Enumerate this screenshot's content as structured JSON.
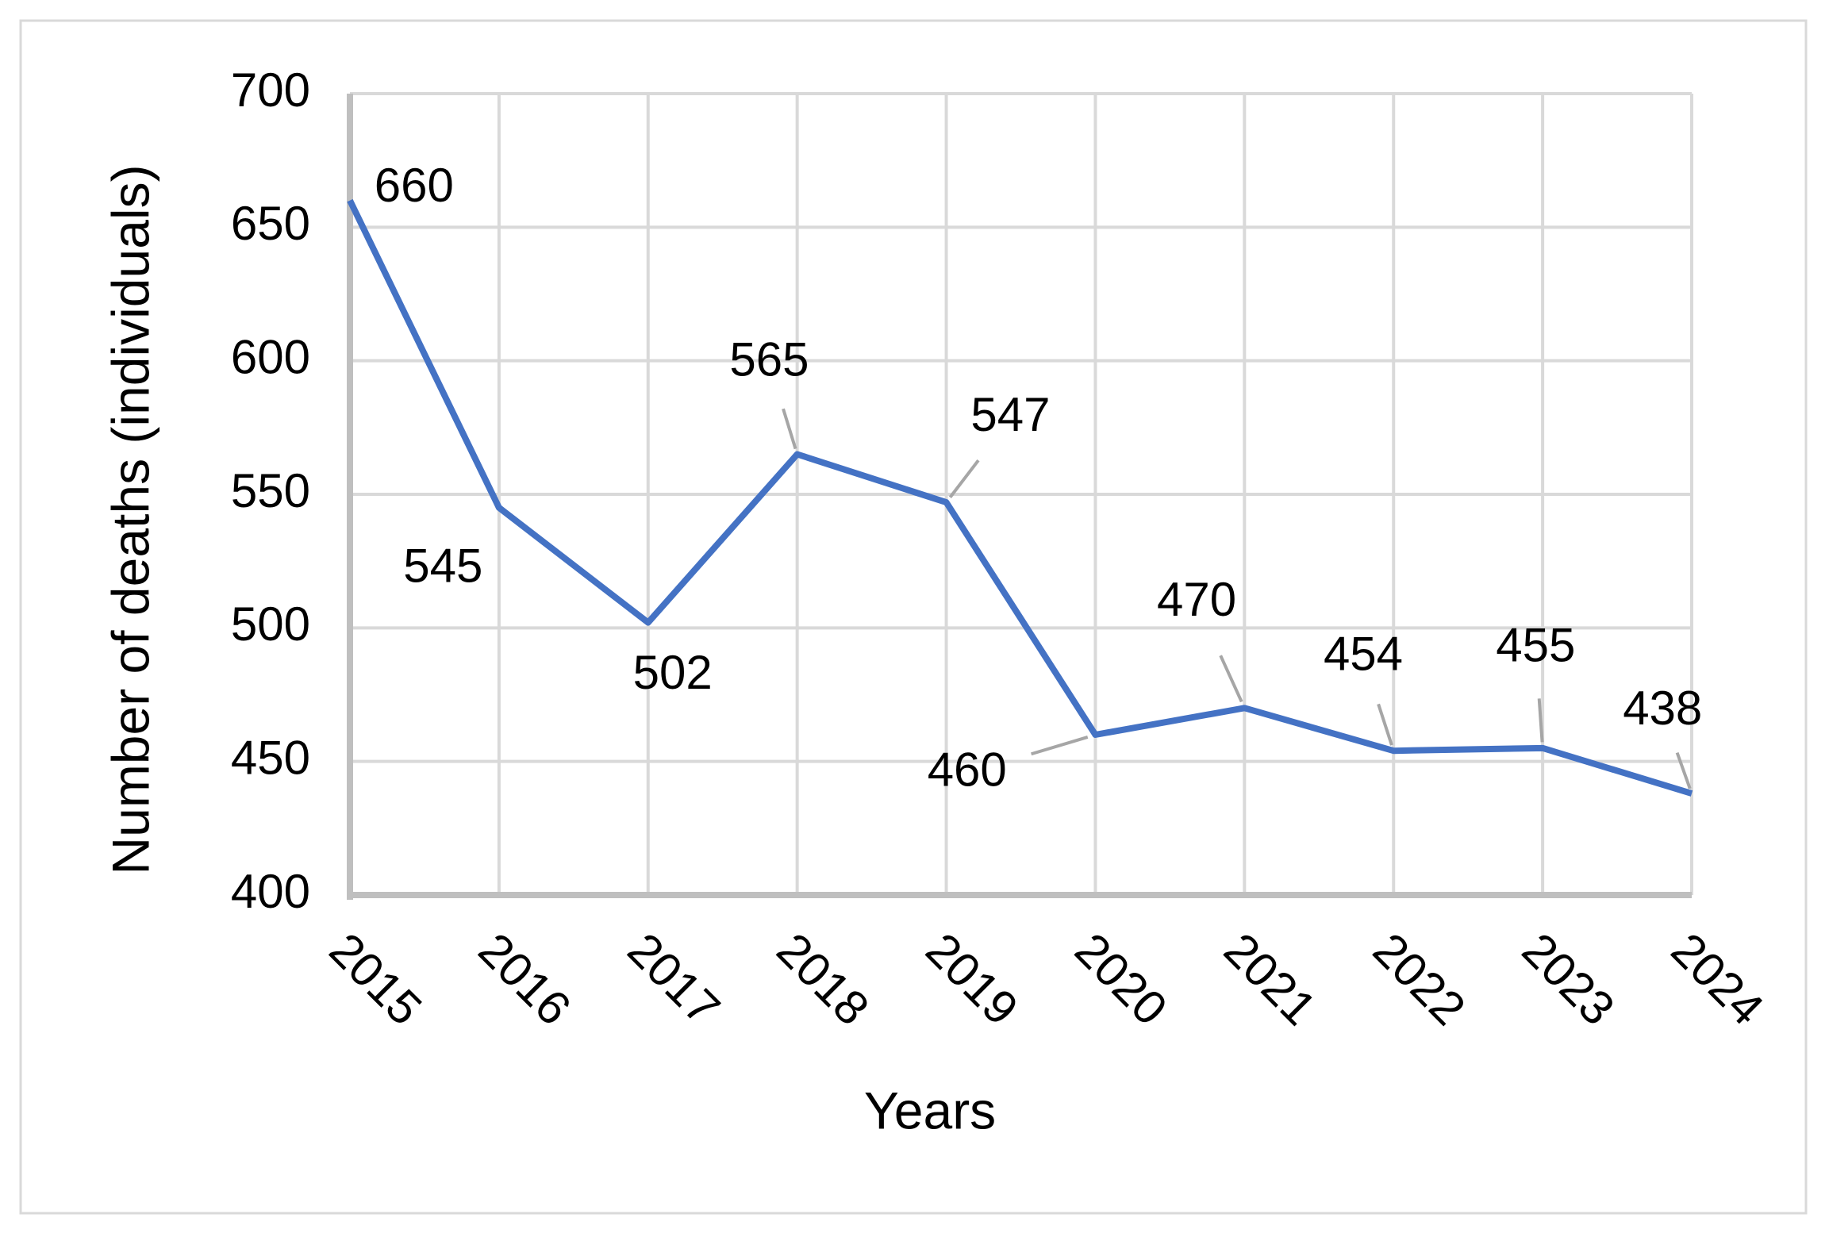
{
  "chart_data": {
    "type": "line",
    "x_label": "Years",
    "y_label": "Number of deaths (individuals)",
    "categories": [
      "2015",
      "2016",
      "2017",
      "2018",
      "2019",
      "2020",
      "2021",
      "2022",
      "2023",
      "2024"
    ],
    "values": [
      660,
      545,
      502,
      565,
      547,
      460,
      470,
      454,
      455,
      438
    ],
    "color": "#4472c4",
    "ylim": [
      400,
      700
    ],
    "yticks": [
      400,
      450,
      500,
      550,
      600,
      650,
      700
    ],
    "grid": true
  }
}
